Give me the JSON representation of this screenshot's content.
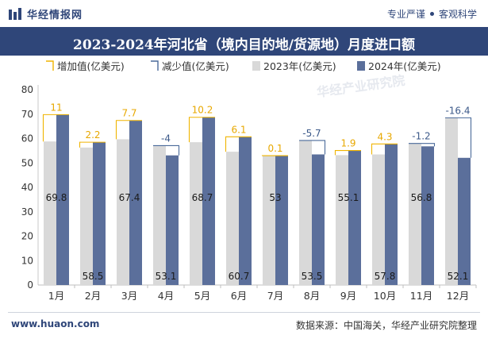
{
  "header": {
    "brand_name": "华经情报网",
    "slogan_left": "专业严谨",
    "slogan_right": "客观科学"
  },
  "footer": {
    "website": "www.huaon.com",
    "source": "数据来源：中国海关，华经产业研究院整理"
  },
  "watermark": "华经产业研究院",
  "chart_data": {
    "type": "bar",
    "title": "2023-2024年河北省（境内目的地/货源地）月度进口额",
    "categories": [
      "1月",
      "2月",
      "3月",
      "4月",
      "5月",
      "6月",
      "7月",
      "8月",
      "9月",
      "10月",
      "11月",
      "12月"
    ],
    "series": [
      {
        "name": "2023年(亿美元)",
        "values": [
          58.8,
          56.3,
          59.7,
          57.1,
          58.5,
          54.6,
          52.9,
          59.2,
          53.2,
          53.5,
          58.0,
          68.5
        ]
      },
      {
        "name": "2024年(亿美元)",
        "values": [
          69.8,
          58.5,
          67.4,
          53.1,
          68.7,
          60.7,
          53,
          53.5,
          55.1,
          57.8,
          56.8,
          52.1
        ]
      }
    ],
    "change": {
      "increase_name": "增加值(亿美元)",
      "decrease_name": "减少值(亿美元)",
      "values": [
        11,
        2.2,
        7.7,
        -4,
        10.2,
        6.1,
        0.1,
        -5.7,
        1.9,
        4.3,
        -1.2,
        -16.4
      ]
    },
    "ylim": [
      0,
      80
    ],
    "yticks": [
      0,
      10,
      20,
      30,
      40,
      50,
      60,
      70,
      80
    ],
    "legend_position": "top-left",
    "colors": {
      "s2023": "#d9d9d9",
      "s2024": "#5b6f9b",
      "increase": "#f0b400",
      "decrease": "#4a6a9a",
      "label2024": "#1a1a1a"
    }
  }
}
